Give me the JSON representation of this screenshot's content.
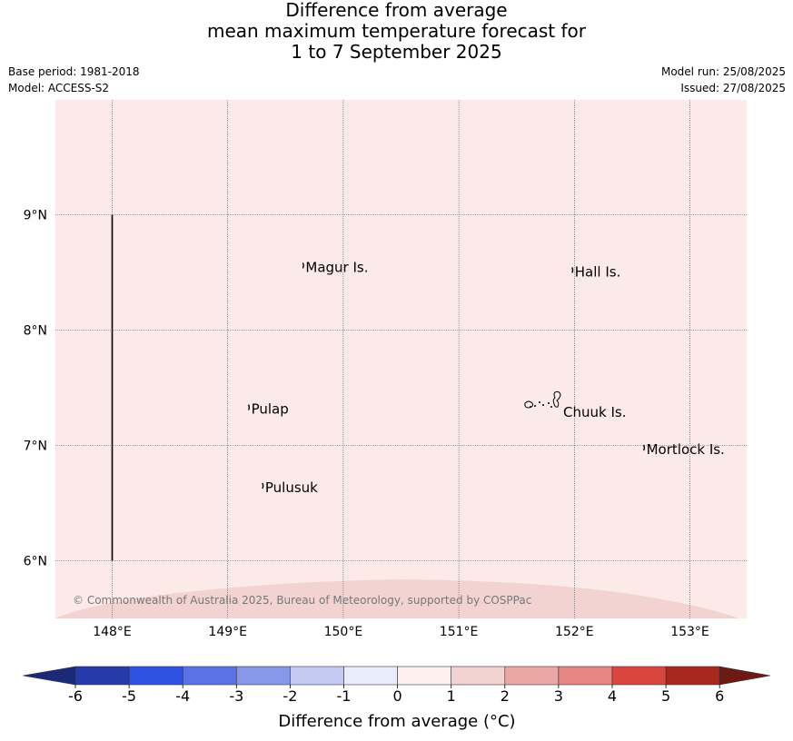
{
  "title": {
    "line1": "Difference from average",
    "line2": "mean maximum temperature forecast for",
    "line3": "1 to 7 September 2025"
  },
  "meta_left": {
    "base_period": "Base period: 1981-2018",
    "model": "Model: ACCESS-S2"
  },
  "meta_right": {
    "model_run": "Model run: 25/08/2025",
    "issued": "Issued: 27/08/2025"
  },
  "map": {
    "lon_range": [
      147.5,
      153.5
    ],
    "lat_range": [
      5.5,
      10.0
    ],
    "background_anomaly": 0.5,
    "lower_band_anomaly": 1.5,
    "colors": {
      "background": "#fbeae8",
      "lower_band": "#f3d3d1",
      "gridline": "#555555",
      "coast": "#000000"
    },
    "lon_ticks": [
      {
        "value": 148,
        "label": "148°E"
      },
      {
        "value": 149,
        "label": "149°E"
      },
      {
        "value": 150,
        "label": "150°E"
      },
      {
        "value": 151,
        "label": "151°E"
      },
      {
        "value": 152,
        "label": "152°E"
      },
      {
        "value": 153,
        "label": "153°E"
      }
    ],
    "lat_ticks": [
      {
        "value": 9,
        "label": "9°N"
      },
      {
        "value": 8,
        "label": "8°N"
      },
      {
        "value": 7,
        "label": "7°N"
      },
      {
        "value": 6,
        "label": "6°N"
      }
    ],
    "boundary_line": {
      "lon": 148.0,
      "lat_from": 6.0,
      "lat_to": 9.0
    },
    "places": [
      {
        "name": "Magur Is.",
        "lon": 149.65,
        "lat": 8.56
      },
      {
        "name": "Hall Is.",
        "lon": 151.98,
        "lat": 8.52
      },
      {
        "name": "Pulap",
        "lon": 149.18,
        "lat": 7.33
      },
      {
        "name": "Chuuk Is.",
        "lon": 151.83,
        "lat": 7.35
      },
      {
        "name": "Mortlock Is.",
        "lon": 152.6,
        "lat": 6.98
      },
      {
        "name": "Pulusuk",
        "lon": 149.3,
        "lat": 6.65
      }
    ],
    "copyright": "© Commonwealth of Australia 2025, Bureau of Meteorology, supported by COSPPac"
  },
  "colorbar": {
    "title": "Difference from average (°C)",
    "ticks": [
      "-6",
      "-5",
      "-4",
      "-3",
      "-2",
      "-1",
      "0",
      "1",
      "2",
      "3",
      "4",
      "5",
      "6"
    ],
    "colors": [
      "#263ba9",
      "#2e51e2",
      "#5b72e4",
      "#8798eb",
      "#c3cbf3",
      "#e9ecfa",
      "#fdf1f0",
      "#f3d3d1",
      "#eba7a4",
      "#e58682",
      "#d9463e",
      "#a8281f"
    ],
    "under_color": "#1b2a78",
    "over_color": "#6b1a14"
  }
}
